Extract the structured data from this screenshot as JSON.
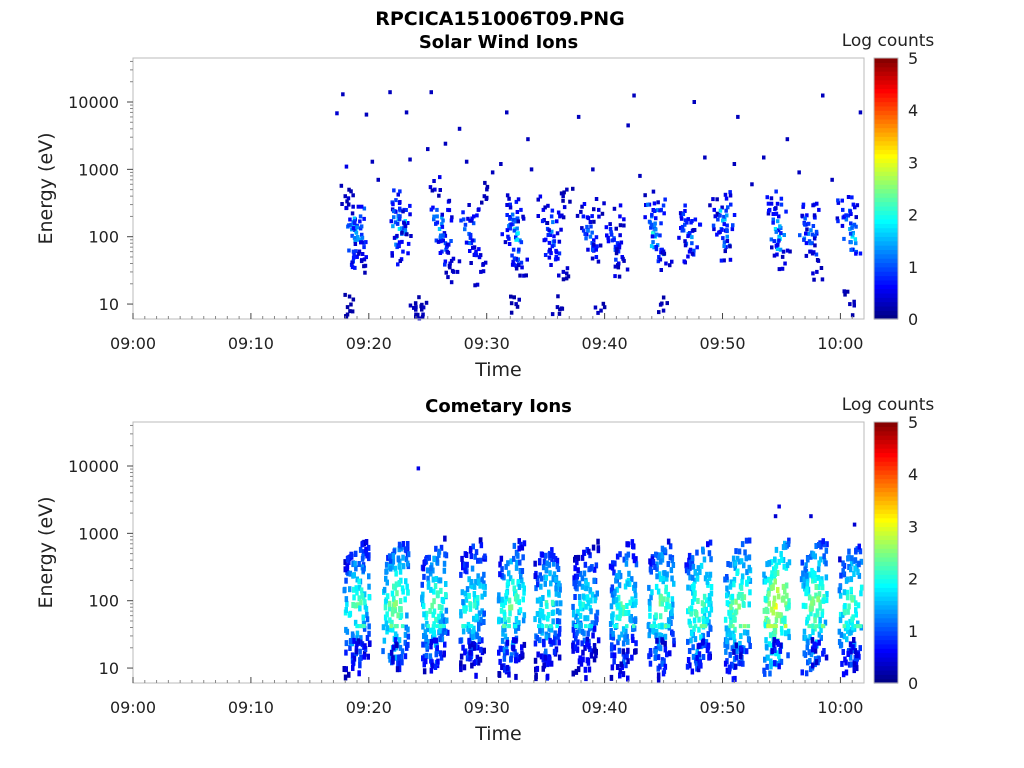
{
  "figure_title": "RPCICA151006T09.PNG",
  "colors": {
    "colormap": [
      "#000080",
      "#0000ff",
      "#0080ff",
      "#00ffff",
      "#80ff80",
      "#ffff00",
      "#ff8000",
      "#ff0000",
      "#800000"
    ]
  },
  "chart_data": [
    {
      "type": "heatmap",
      "title": "Solar Wind Ions",
      "xlabel": "Time",
      "ylabel": "Energy (eV)",
      "x_tick_labels": [
        "09:00",
        "09:10",
        "09:20",
        "09:30",
        "09:40",
        "09:50",
        "10:00"
      ],
      "x_tick_minutes": [
        0,
        10,
        20,
        30,
        40,
        50,
        60
      ],
      "xlim_minutes": [
        0,
        62
      ],
      "y_scale": "log",
      "ylim": [
        6,
        45000
      ],
      "y_tick_labels": [
        "10",
        "100",
        "1000",
        "10000"
      ],
      "y_tick_values": [
        10,
        100,
        1000,
        10000
      ],
      "colorbar": {
        "label": "Log counts",
        "min": 0,
        "max": 5,
        "ticks": [
          "0",
          "1",
          "2",
          "3",
          "4",
          "5"
        ]
      },
      "cells": [
        [
          17.3,
          6800,
          0.4
        ],
        [
          17.8,
          13000,
          0.3
        ],
        [
          18.1,
          1100,
          0.5
        ],
        [
          18.0,
          400,
          0.3
        ],
        [
          18.3,
          300,
          0.6
        ],
        [
          18.5,
          150,
          1.1
        ],
        [
          18.8,
          180,
          1.6
        ],
        [
          18.9,
          120,
          1.9
        ],
        [
          19.1,
          90,
          1.4
        ],
        [
          19.3,
          200,
          1.0
        ],
        [
          19.6,
          70,
          0.8
        ],
        [
          18.7,
          60,
          0.9
        ],
        [
          19.0,
          50,
          0.7
        ],
        [
          19.4,
          45,
          0.5
        ],
        [
          18.2,
          7,
          0.2
        ],
        [
          18.2,
          9,
          0.2
        ],
        [
          21.8,
          14000,
          0.3
        ],
        [
          22.2,
          240,
          1.0
        ],
        [
          22.3,
          350,
          0.9
        ],
        [
          22.5,
          180,
          1.5
        ],
        [
          22.6,
          130,
          1.8
        ],
        [
          22.8,
          110,
          1.2
        ],
        [
          23.0,
          250,
          0.8
        ],
        [
          22.9,
          60,
          0.7
        ],
        [
          22.4,
          70,
          0.9
        ],
        [
          23.3,
          160,
          0.6
        ],
        [
          23.5,
          1400,
          0.3
        ],
        [
          23.2,
          7000,
          0.3
        ],
        [
          24.0,
          7,
          0.3
        ],
        [
          24.0,
          9,
          0.3
        ],
        [
          25.3,
          14000,
          0.3
        ],
        [
          25.6,
          500,
          0.5
        ],
        [
          25.8,
          200,
          1.2
        ],
        [
          26.0,
          130,
          1.6
        ],
        [
          26.2,
          100,
          1.4
        ],
        [
          26.5,
          80,
          1.0
        ],
        [
          26.7,
          250,
          0.7
        ],
        [
          26.2,
          60,
          0.8
        ],
        [
          26.9,
          40,
          0.5
        ],
        [
          27.2,
          30,
          0.4
        ],
        [
          26.5,
          2400,
          0.3
        ],
        [
          25.0,
          2000,
          0.3
        ],
        [
          27.7,
          4000,
          0.3
        ],
        [
          28.2,
          150,
          0.9
        ],
        [
          28.5,
          110,
          1.1
        ],
        [
          28.7,
          80,
          0.8
        ],
        [
          28.9,
          200,
          0.6
        ],
        [
          29.1,
          60,
          0.6
        ],
        [
          28.3,
          1300,
          0.3
        ],
        [
          29.5,
          30,
          0.4
        ],
        [
          31.2,
          1200,
          0.3
        ],
        [
          31.7,
          7000,
          0.3
        ],
        [
          32.0,
          300,
          0.8
        ],
        [
          32.2,
          180,
          1.5
        ],
        [
          32.4,
          130,
          2.1
        ],
        [
          32.5,
          90,
          1.8
        ],
        [
          32.7,
          60,
          1.2
        ],
        [
          32.9,
          250,
          0.7
        ],
        [
          32.6,
          45,
          0.8
        ],
        [
          33.0,
          35,
          0.5
        ],
        [
          31.8,
          100,
          0.7
        ],
        [
          33.5,
          2800,
          0.3
        ],
        [
          32.5,
          10,
          0.3
        ],
        [
          34.8,
          250,
          0.6
        ],
        [
          35.1,
          160,
          0.9
        ],
        [
          35.4,
          110,
          1.2
        ],
        [
          35.7,
          75,
          1.0
        ],
        [
          35.9,
          50,
          0.7
        ],
        [
          36.2,
          200,
          0.6
        ],
        [
          35.3,
          60,
          0.8
        ],
        [
          36.5,
          30,
          0.4
        ],
        [
          36.0,
          9,
          0.3
        ],
        [
          37.8,
          6000,
          0.3
        ],
        [
          38.2,
          200,
          0.7
        ],
        [
          38.5,
          140,
          1.0
        ],
        [
          38.8,
          100,
          1.2
        ],
        [
          39.0,
          70,
          0.9
        ],
        [
          39.3,
          50,
          0.7
        ],
        [
          39.5,
          250,
          0.5
        ],
        [
          39.7,
          8,
          0.3
        ],
        [
          40.5,
          130,
          0.8
        ],
        [
          40.8,
          95,
          1.0
        ],
        [
          41.0,
          70,
          0.9
        ],
        [
          41.3,
          200,
          0.6
        ],
        [
          41.5,
          50,
          0.6
        ],
        [
          42.0,
          4500,
          0.3
        ],
        [
          42.5,
          12500,
          0.3
        ],
        [
          41.2,
          40,
          0.5
        ],
        [
          43.8,
          300,
          0.6
        ],
        [
          44.0,
          200,
          1.2
        ],
        [
          44.2,
          140,
          1.6
        ],
        [
          44.3,
          100,
          1.9
        ],
        [
          44.5,
          75,
          1.3
        ],
        [
          44.8,
          250,
          0.9
        ],
        [
          44.6,
          50,
          0.8
        ],
        [
          45.2,
          40,
          0.5
        ],
        [
          45.0,
          8,
          0.3
        ],
        [
          46.5,
          200,
          0.7
        ],
        [
          46.8,
          150,
          1.0
        ],
        [
          47.1,
          110,
          1.3
        ],
        [
          47.4,
          80,
          1.0
        ],
        [
          47.7,
          180,
          0.7
        ],
        [
          47.2,
          60,
          0.6
        ],
        [
          47.6,
          10000,
          0.3
        ],
        [
          49.3,
          250,
          0.6
        ],
        [
          49.6,
          180,
          0.9
        ],
        [
          49.9,
          130,
          1.1
        ],
        [
          50.2,
          180,
          1.6
        ],
        [
          50.4,
          100,
          1.3
        ],
        [
          50.7,
          300,
          0.8
        ],
        [
          50.3,
          70,
          0.7
        ],
        [
          51.0,
          1200,
          0.3
        ],
        [
          51.3,
          6000,
          0.3
        ],
        [
          54.0,
          250,
          0.7
        ],
        [
          54.3,
          180,
          1.1
        ],
        [
          54.5,
          130,
          1.8
        ],
        [
          54.8,
          100,
          1.5
        ],
        [
          55.0,
          300,
          0.9
        ],
        [
          54.6,
          70,
          0.8
        ],
        [
          55.3,
          40,
          0.5
        ],
        [
          55.5,
          2800,
          0.3
        ],
        [
          56.8,
          200,
          0.7
        ],
        [
          57.0,
          150,
          1.1
        ],
        [
          57.3,
          110,
          1.3
        ],
        [
          57.6,
          80,
          1.0
        ],
        [
          57.8,
          300,
          0.8
        ],
        [
          57.5,
          60,
          0.7
        ],
        [
          58.0,
          30,
          0.4
        ],
        [
          58.5,
          12500,
          0.3
        ],
        [
          60.2,
          250,
          0.8
        ],
        [
          60.5,
          180,
          1.2
        ],
        [
          60.8,
          130,
          1.5
        ],
        [
          61.0,
          100,
          1.9
        ],
        [
          61.3,
          80,
          1.3
        ],
        [
          61.1,
          300,
          0.7
        ],
        [
          60.8,
          10,
          0.3
        ],
        [
          61.7,
          7000,
          0.3
        ],
        [
          20.3,
          1300,
          0.3
        ],
        [
          20.8,
          700,
          0.3
        ],
        [
          29.8,
          400,
          0.3
        ],
        [
          30.5,
          900,
          0.3
        ],
        [
          33.8,
          1000,
          0.3
        ],
        [
          36.8,
          500,
          0.3
        ],
        [
          39.0,
          1000,
          0.3
        ],
        [
          43.0,
          800,
          0.3
        ],
        [
          48.5,
          1500,
          0.3
        ],
        [
          52.5,
          600,
          0.3
        ],
        [
          53.5,
          1500,
          0.3
        ],
        [
          56.5,
          900,
          0.3
        ],
        [
          59.3,
          700,
          0.3
        ],
        [
          19.8,
          6500,
          0.3
        ],
        [
          24.6,
          7,
          0.3
        ]
      ]
    },
    {
      "type": "heatmap",
      "title": "Cometary Ions",
      "xlabel": "Time",
      "ylabel": "Energy (eV)",
      "x_tick_labels": [
        "09:00",
        "09:10",
        "09:20",
        "09:30",
        "09:40",
        "09:50",
        "10:00"
      ],
      "x_tick_minutes": [
        0,
        10,
        20,
        30,
        40,
        50,
        60
      ],
      "xlim_minutes": [
        0,
        62
      ],
      "y_scale": "log",
      "ylim": [
        6,
        45000
      ],
      "y_tick_labels": [
        "10",
        "100",
        "1000",
        "10000"
      ],
      "y_tick_values": [
        10,
        100,
        1000,
        10000
      ],
      "colorbar": {
        "label": "Log counts",
        "min": 0,
        "max": 5,
        "ticks": [
          "0",
          "1",
          "2",
          "3",
          "4",
          "5"
        ]
      },
      "bursts": [
        {
          "t": 19.0,
          "peak": 2.3
        },
        {
          "t": 22.3,
          "peak": 2.6
        },
        {
          "t": 25.6,
          "peak": 2.4
        },
        {
          "t": 28.8,
          "peak": 2.2
        },
        {
          "t": 32.1,
          "peak": 2.4
        },
        {
          "t": 35.2,
          "peak": 2.2
        },
        {
          "t": 38.4,
          "peak": 2.0
        },
        {
          "t": 41.6,
          "peak": 2.3
        },
        {
          "t": 44.8,
          "peak": 2.4
        },
        {
          "t": 48.0,
          "peak": 2.5
        },
        {
          "t": 51.3,
          "peak": 2.6
        },
        {
          "t": 54.6,
          "peak": 3.0
        },
        {
          "t": 57.8,
          "peak": 2.6
        },
        {
          "t": 61.0,
          "peak": 2.4
        }
      ],
      "cells": [
        [
          24.2,
          9200,
          0.5
        ],
        [
          54.8,
          2500,
          0.5
        ],
        [
          54.5,
          1800,
          0.4
        ],
        [
          57.5,
          1800,
          0.4
        ],
        [
          61.2,
          1350,
          0.4
        ]
      ]
    }
  ]
}
